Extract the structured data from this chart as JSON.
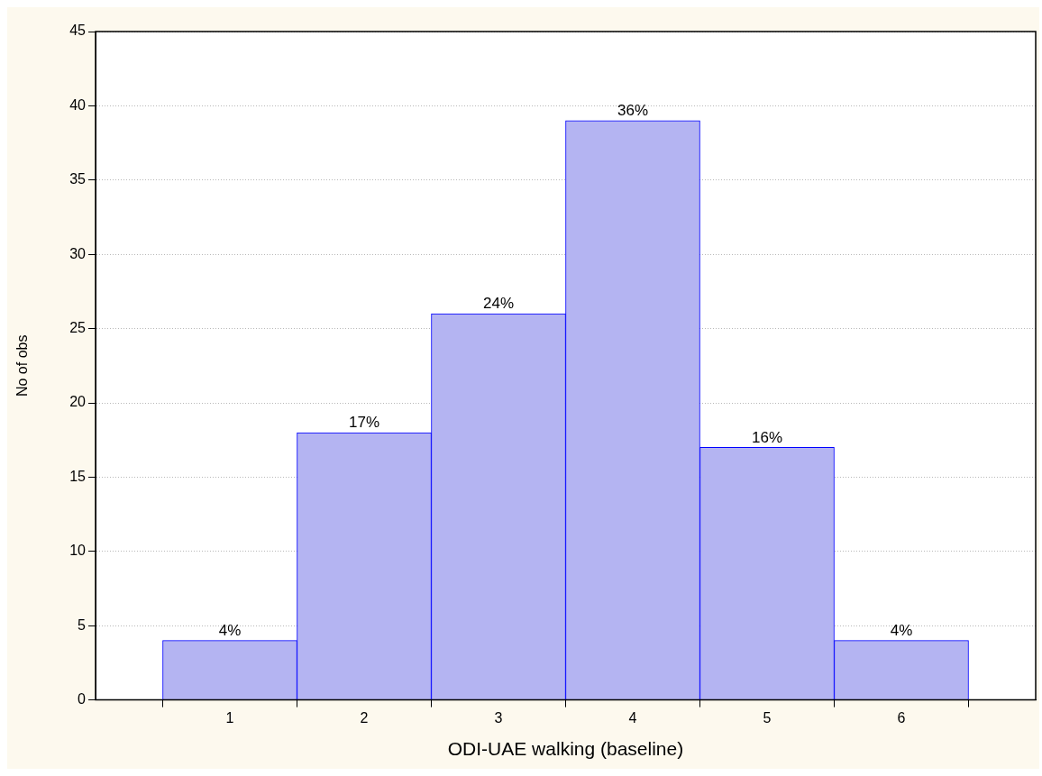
{
  "chart_data": {
    "type": "bar",
    "xlabel": "ODI-UAE walking (baseline)",
    "ylabel": "No of obs",
    "x": [
      1,
      2,
      3,
      4,
      5,
      6
    ],
    "values": [
      4,
      18,
      26,
      39,
      17,
      4
    ],
    "annotations": [
      {
        "text": "4%",
        "x": 1,
        "y": 4
      },
      {
        "text": "17%",
        "x": 2,
        "y": 18
      },
      {
        "text": "24%",
        "x": 3,
        "y": 26
      },
      {
        "text": "36%",
        "x": 4,
        "y": 39
      },
      {
        "text": "16%",
        "x": 5,
        "y": 17
      },
      {
        "text": "4%",
        "x": 6,
        "y": 4
      }
    ],
    "color": "#b4b4f2",
    "xlim": [
      0,
      7
    ],
    "xticks": [
      1,
      2,
      3,
      4,
      5,
      6
    ],
    "ylim": [
      0,
      45
    ],
    "yticks": [
      0,
      5,
      10,
      15,
      20,
      25,
      30,
      35,
      40,
      45
    ],
    "grid": "y"
  }
}
